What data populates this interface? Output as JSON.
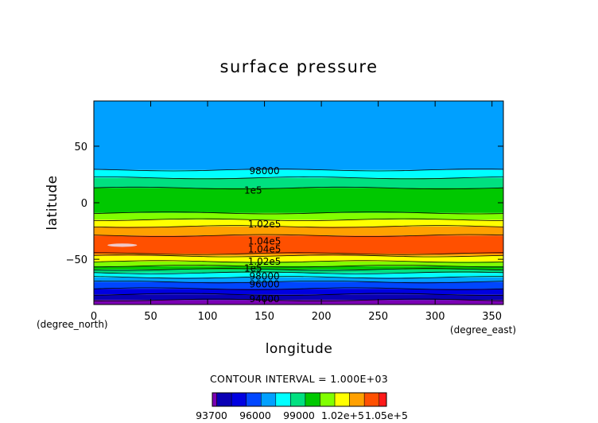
{
  "chart_data": {
    "type": "heatmap",
    "title": "surface pressure",
    "xlabel": "longitude",
    "ylabel": "latitude",
    "x_unit": "(degree_east)",
    "y_unit": "(degree_north)",
    "xlim": [
      0,
      360
    ],
    "ylim": [
      -90,
      90
    ],
    "x_ticks": [
      "0",
      "50",
      "100",
      "150",
      "200",
      "250",
      "300",
      "350"
    ],
    "y_ticks": [
      "50",
      "0",
      "−50"
    ],
    "contour_interval_text": "CONTOUR INTERVAL = 1.000E+03",
    "levels": [
      93700,
      94000,
      95000,
      96000,
      97000,
      98000,
      99000,
      100000,
      101000,
      102000,
      103000,
      104000,
      105000,
      105500
    ],
    "level_colors": [
      "#7b00b4",
      "#0a00b4",
      "#0000e0",
      "#0046ff",
      "#00a0ff",
      "#00ffff",
      "#00e080",
      "#00c800",
      "#80ff00",
      "#ffff00",
      "#ffa000",
      "#ff5000",
      "#ff1a1a"
    ],
    "bands": [
      {
        "lat": -90,
        "value": 93700
      },
      {
        "lat": -86,
        "value": 94000
      },
      {
        "lat": -81,
        "value": 95000
      },
      {
        "lat": -76,
        "value": 96000
      },
      {
        "lat": -70,
        "value": 97000
      },
      {
        "lat": -66,
        "value": 98000
      },
      {
        "lat": -62,
        "value": 99000
      },
      {
        "lat": -59,
        "value": 100000
      },
      {
        "lat": -56,
        "value": 101000
      },
      {
        "lat": -52,
        "value": 102000
      },
      {
        "lat": -47,
        "value": 103000
      },
      {
        "lat": -45,
        "value": 104000
      },
      {
        "lat": -29,
        "value": 103000
      },
      {
        "lat": -21,
        "value": 102000
      },
      {
        "lat": -15,
        "value": 101000
      },
      {
        "lat": -9,
        "value": 100000
      },
      {
        "lat": 13,
        "value": 99000
      },
      {
        "lat": 22,
        "value": 98000
      },
      {
        "lat": 29,
        "value": 97900
      },
      {
        "lat": 90,
        "value": 97900
      }
    ],
    "max_region": {
      "lon": [
        12,
        38
      ],
      "lat": [
        -39,
        -36
      ],
      "color": "#f0c8c8"
    },
    "contour_labels": [
      {
        "text": "98000",
        "lon": 150,
        "lat": 28
      },
      {
        "text": "1e5",
        "lon": 140,
        "lat": 11
      },
      {
        "text": "1.02e5",
        "lon": 150,
        "lat": -19
      },
      {
        "text": "1.04e5",
        "lon": 150,
        "lat": -34
      },
      {
        "text": "1.04e5",
        "lon": 150,
        "lat": -41
      },
      {
        "text": "1.02e5",
        "lon": 150,
        "lat": -52
      },
      {
        "text": "1e5",
        "lon": 140,
        "lat": -58
      },
      {
        "text": "98000",
        "lon": 150,
        "lat": -65
      },
      {
        "text": "96000",
        "lon": 150,
        "lat": -72
      },
      {
        "text": "94000",
        "lon": 150,
        "lat": -85
      }
    ],
    "colorbar_labels": [
      "93700",
      "96000",
      "99000",
      "1.02e+5",
      "1.05e+5"
    ],
    "grid": false
  }
}
